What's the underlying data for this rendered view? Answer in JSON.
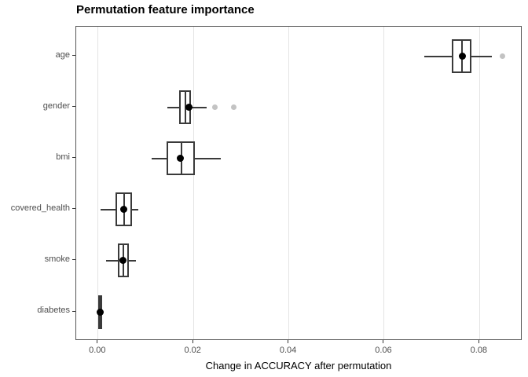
{
  "chart_data": {
    "type": "boxplot",
    "orientation": "horizontal",
    "title": "Permutation feature importance",
    "xlabel": "Change in ACCURACY after permutation",
    "ylabel": "",
    "xlim": [
      -0.00458,
      0.089
    ],
    "x_ticks": [
      {
        "value": 0.0,
        "label": "0.00"
      },
      {
        "value": 0.02,
        "label": "0.02"
      },
      {
        "value": 0.04,
        "label": "0.04"
      },
      {
        "value": 0.06,
        "label": "0.06"
      },
      {
        "value": 0.08,
        "label": "0.08"
      }
    ],
    "grid": "major-vertical-only",
    "legend": "none",
    "categories": [
      "age",
      "gender",
      "bmi",
      "covered_health",
      "smoke",
      "diabetes"
    ],
    "series": [
      {
        "name": "age",
        "whisker_low": 0.0684,
        "q1": 0.0741,
        "median": 0.0763,
        "q3": 0.0783,
        "whisker_high": 0.0825,
        "mean": 0.0764,
        "outliers": [
          0.0848
        ]
      },
      {
        "name": "gender",
        "whisker_low": 0.0145,
        "q1": 0.017,
        "median": 0.0183,
        "q3": 0.0195,
        "whisker_high": 0.0227,
        "mean": 0.019,
        "outliers": [
          0.0245,
          0.0285
        ]
      },
      {
        "name": "bmi",
        "whisker_low": 0.0113,
        "q1": 0.0143,
        "median": 0.0175,
        "q3": 0.0203,
        "whisker_high": 0.0257,
        "mean": 0.0173,
        "outliers": []
      },
      {
        "name": "covered_health",
        "whisker_low": 0.0006,
        "q1": 0.0037,
        "median": 0.0054,
        "q3": 0.0071,
        "whisker_high": 0.0084,
        "mean": 0.0054,
        "outliers": []
      },
      {
        "name": "smoke",
        "whisker_low": 0.0016,
        "q1": 0.0042,
        "median": 0.0053,
        "q3": 0.0065,
        "whisker_high": 0.0079,
        "mean": 0.0052,
        "outliers": []
      },
      {
        "name": "diabetes",
        "whisker_low": 0.0001,
        "q1": 0.0001,
        "median": 0.0004,
        "q3": 0.0009,
        "whisker_high": 0.0009,
        "mean": 0.0004,
        "outliers": []
      }
    ],
    "colors": {
      "box_stroke": "#3a3a3a",
      "median": "#3a3a3a",
      "mean_dot": "#000000",
      "outlier_dot": "#c3c3c3",
      "gridline": "#e4e4e4",
      "panel_border": "#555555",
      "axis_text": "#4d4d4d",
      "title_text": "#000000",
      "background": "#ffffff"
    }
  }
}
